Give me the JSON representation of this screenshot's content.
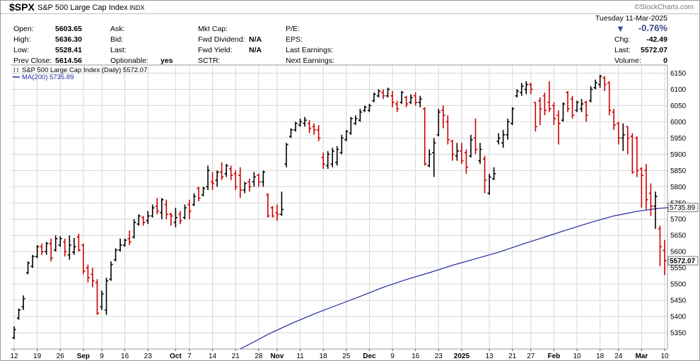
{
  "header": {
    "symbol": "$SPX",
    "name": "S&P 500 Large Cap Index",
    "exchange": "INDX",
    "logo": "©StockCharts.com",
    "date": "Tuesday  11-Mar-2025",
    "change_pct": "-0.76%",
    "change_arrow": "▼",
    "chg_label": "Chg:",
    "chg_value": "-42.49",
    "last_label": "Last:",
    "last_value": "5572.07",
    "volume_label": "Volume:",
    "volume_value": "0"
  },
  "stats": {
    "open_label": "Open:",
    "open": "5603.65",
    "high_label": "High:",
    "high": "5636.30",
    "low_label": "Low:",
    "low": "5528.41",
    "prev_label": "Prev Close:",
    "prev": "5614.56",
    "ask_label": "Ask:",
    "bid_label": "Bid:",
    "lastq_label": "Last:",
    "optionable_label": "Optionable:",
    "optionable": "yes",
    "mktcap_label": "Mkt Cap:",
    "fwddiv_label": "Fwd Dividend:",
    "fwddiv": "N/A",
    "fwdyield_label": "Fwd Yield:",
    "fwdyield": "N/A",
    "sctr_label": "SCTR:",
    "pe_label": "P/E:",
    "eps_label": "EPS:",
    "lastearn_label": "Last Earnings:",
    "nextearn_label": "Next Earnings:"
  },
  "chart_data": {
    "type": "line",
    "legend": {
      "price": "S&P 500 Large Cap Index (Daily) 5572.07",
      "ma": "MA(200) 5735.89",
      "placement": "top-left"
    },
    "price_style": "ohlc-bars",
    "colors": {
      "up": "#000000",
      "down": "#cc0000",
      "ma": "#1f2a9e",
      "grid": "#d6d6d6"
    },
    "ylim": [
      5300,
      6175
    ],
    "y_ticks": [
      5350,
      5400,
      5450,
      5500,
      5550,
      5600,
      5650,
      5700,
      5750,
      5800,
      5850,
      5900,
      5950,
      6000,
      6050,
      6100,
      6150
    ],
    "x_ticks": [
      {
        "label": "12",
        "bar": 0,
        "bold": false
      },
      {
        "label": "19",
        "bar": 5,
        "bold": false
      },
      {
        "label": "26",
        "bar": 10,
        "bold": false
      },
      {
        "label": "Sep",
        "bar": 15,
        "bold": true
      },
      {
        "label": "9",
        "bar": 19,
        "bold": false
      },
      {
        "label": "16",
        "bar": 24,
        "bold": false
      },
      {
        "label": "23",
        "bar": 29,
        "bold": false
      },
      {
        "label": "Oct",
        "bar": 35,
        "bold": true
      },
      {
        "label": "7",
        "bar": 38,
        "bold": false
      },
      {
        "label": "14",
        "bar": 43,
        "bold": false
      },
      {
        "label": "21",
        "bar": 48,
        "bold": false
      },
      {
        "label": "28",
        "bar": 53,
        "bold": false
      },
      {
        "label": "Nov",
        "bar": 57,
        "bold": true
      },
      {
        "label": "11",
        "bar": 62,
        "bold": false
      },
      {
        "label": "18",
        "bar": 67,
        "bold": false
      },
      {
        "label": "25",
        "bar": 72,
        "bold": false
      },
      {
        "label": "Dec",
        "bar": 77,
        "bold": true
      },
      {
        "label": "9",
        "bar": 82,
        "bold": false
      },
      {
        "label": "16",
        "bar": 87,
        "bold": false
      },
      {
        "label": "23",
        "bar": 92,
        "bold": false
      },
      {
        "label": "2025",
        "bar": 97,
        "bold": true
      },
      {
        "label": "13",
        "bar": 103,
        "bold": false
      },
      {
        "label": "21",
        "bar": 108,
        "bold": false
      },
      {
        "label": "27",
        "bar": 112,
        "bold": false
      },
      {
        "label": "Feb",
        "bar": 117,
        "bold": true
      },
      {
        "label": "10",
        "bar": 122,
        "bold": false
      },
      {
        "label": "18",
        "bar": 127,
        "bold": false
      },
      {
        "label": "24",
        "bar": 131,
        "bold": false
      },
      {
        "label": "Mar",
        "bar": 136,
        "bold": true
      },
      {
        "label": "10",
        "bar": 141,
        "bold": false
      }
    ],
    "last_price": 5572.07,
    "ma_last": 5735.89,
    "ma_points": [
      [
        49,
        5300
      ],
      [
        52,
        5322
      ],
      [
        55,
        5345
      ],
      [
        60,
        5378
      ],
      [
        65,
        5408
      ],
      [
        70,
        5435
      ],
      [
        75,
        5462
      ],
      [
        80,
        5490
      ],
      [
        85,
        5514
      ],
      [
        90,
        5535
      ],
      [
        95,
        5558
      ],
      [
        100,
        5578
      ],
      [
        105,
        5598
      ],
      [
        110,
        5622
      ],
      [
        115,
        5645
      ],
      [
        120,
        5668
      ],
      [
        125,
        5690
      ],
      [
        130,
        5710
      ],
      [
        135,
        5724
      ],
      [
        139,
        5732
      ],
      [
        142,
        5736
      ]
    ],
    "bars": [
      {
        "h": 5370,
        "l": 5330,
        "o": 5335,
        "c": 5360
      },
      {
        "h": 5425,
        "l": 5390,
        "o": 5395,
        "c": 5420
      },
      {
        "h": 5465,
        "l": 5420,
        "o": 5430,
        "c": 5455
      },
      {
        "h": 5570,
        "l": 5530,
        "o": 5535,
        "c": 5565
      },
      {
        "h": 5590,
        "l": 5550,
        "o": 5555,
        "c": 5585
      },
      {
        "h": 5620,
        "l": 5580,
        "o": 5585,
        "c": 5615
      },
      {
        "h": 5625,
        "l": 5590,
        "o": 5615,
        "c": 5600
      },
      {
        "h": 5630,
        "l": 5590,
        "o": 5600,
        "c": 5625
      },
      {
        "h": 5640,
        "l": 5570,
        "o": 5625,
        "c": 5580
      },
      {
        "h": 5650,
        "l": 5600,
        "o": 5605,
        "c": 5640
      },
      {
        "h": 5648,
        "l": 5615,
        "o": 5620,
        "c": 5640
      },
      {
        "h": 5640,
        "l": 5585,
        "o": 5630,
        "c": 5600
      },
      {
        "h": 5650,
        "l": 5575,
        "o": 5590,
        "c": 5620
      },
      {
        "h": 5642,
        "l": 5590,
        "o": 5598,
        "c": 5615
      },
      {
        "h": 5655,
        "l": 5600,
        "o": 5645,
        "c": 5605
      },
      {
        "h": 5625,
        "l": 5530,
        "o": 5620,
        "c": 5540
      },
      {
        "h": 5560,
        "l": 5505,
        "o": 5550,
        "c": 5520
      },
      {
        "h": 5550,
        "l": 5490,
        "o": 5530,
        "c": 5510
      },
      {
        "h": 5515,
        "l": 5405,
        "o": 5505,
        "c": 5410
      },
      {
        "h": 5480,
        "l": 5420,
        "o": 5430,
        "c": 5470
      },
      {
        "h": 5520,
        "l": 5405,
        "o": 5420,
        "c": 5510
      },
      {
        "h": 5570,
        "l": 5510,
        "o": 5515,
        "c": 5560
      },
      {
        "h": 5610,
        "l": 5570,
        "o": 5575,
        "c": 5605
      },
      {
        "h": 5640,
        "l": 5600,
        "o": 5605,
        "c": 5620
      },
      {
        "h": 5640,
        "l": 5615,
        "o": 5620,
        "c": 5635
      },
      {
        "h": 5665,
        "l": 5620,
        "o": 5640,
        "c": 5630
      },
      {
        "h": 5700,
        "l": 5640,
        "o": 5645,
        "c": 5690
      },
      {
        "h": 5715,
        "l": 5680,
        "o": 5685,
        "c": 5710
      },
      {
        "h": 5710,
        "l": 5680,
        "o": 5705,
        "c": 5690
      },
      {
        "h": 5725,
        "l": 5685,
        "o": 5695,
        "c": 5710
      },
      {
        "h": 5745,
        "l": 5705,
        "o": 5710,
        "c": 5735
      },
      {
        "h": 5765,
        "l": 5715,
        "o": 5740,
        "c": 5725
      },
      {
        "h": 5765,
        "l": 5700,
        "o": 5720,
        "c": 5760
      },
      {
        "h": 5760,
        "l": 5700,
        "o": 5745,
        "c": 5715
      },
      {
        "h": 5720,
        "l": 5680,
        "o": 5715,
        "c": 5710
      },
      {
        "h": 5735,
        "l": 5675,
        "o": 5690,
        "c": 5705
      },
      {
        "h": 5725,
        "l": 5685,
        "o": 5715,
        "c": 5695
      },
      {
        "h": 5745,
        "l": 5700,
        "o": 5705,
        "c": 5735
      },
      {
        "h": 5760,
        "l": 5700,
        "o": 5745,
        "c": 5725
      },
      {
        "h": 5780,
        "l": 5740,
        "o": 5745,
        "c": 5770
      },
      {
        "h": 5800,
        "l": 5755,
        "o": 5795,
        "c": 5765
      },
      {
        "h": 5800,
        "l": 5770,
        "o": 5775,
        "c": 5795
      },
      {
        "h": 5865,
        "l": 5790,
        "o": 5800,
        "c": 5850
      },
      {
        "h": 5845,
        "l": 5790,
        "o": 5815,
        "c": 5810
      },
      {
        "h": 5850,
        "l": 5800,
        "o": 5820,
        "c": 5845
      },
      {
        "h": 5875,
        "l": 5820,
        "o": 5845,
        "c": 5830
      },
      {
        "h": 5870,
        "l": 5830,
        "o": 5840,
        "c": 5865
      },
      {
        "h": 5865,
        "l": 5820,
        "o": 5855,
        "c": 5835
      },
      {
        "h": 5850,
        "l": 5790,
        "o": 5840,
        "c": 5800
      },
      {
        "h": 5860,
        "l": 5765,
        "o": 5835,
        "c": 5790
      },
      {
        "h": 5815,
        "l": 5780,
        "o": 5790,
        "c": 5810
      },
      {
        "h": 5825,
        "l": 5785,
        "o": 5815,
        "c": 5800
      },
      {
        "h": 5845,
        "l": 5800,
        "o": 5815,
        "c": 5830
      },
      {
        "h": 5840,
        "l": 5800,
        "o": 5835,
        "c": 5815
      },
      {
        "h": 5850,
        "l": 5800,
        "o": 5815,
        "c": 5845
      },
      {
        "h": 5780,
        "l": 5705,
        "o": 5775,
        "c": 5710
      },
      {
        "h": 5740,
        "l": 5705,
        "o": 5735,
        "c": 5710
      },
      {
        "h": 5745,
        "l": 5695,
        "o": 5720,
        "c": 5715
      },
      {
        "h": 5785,
        "l": 5710,
        "o": 5715,
        "c": 5730
      },
      {
        "h": 5935,
        "l": 5860,
        "o": 5870,
        "c": 5930
      },
      {
        "h": 5980,
        "l": 5950,
        "o": 5955,
        "c": 5975
      },
      {
        "h": 6000,
        "l": 5970,
        "o": 5975,
        "c": 5995
      },
      {
        "h": 6010,
        "l": 5985,
        "o": 5990,
        "c": 6000
      },
      {
        "h": 6015,
        "l": 5985,
        "o": 5995,
        "c": 6005
      },
      {
        "h": 6005,
        "l": 5965,
        "o": 5995,
        "c": 5980
      },
      {
        "h": 5995,
        "l": 5960,
        "o": 5985,
        "c": 5975
      },
      {
        "h": 5990,
        "l": 5940,
        "o": 5975,
        "c": 5950
      },
      {
        "h": 5905,
        "l": 5855,
        "o": 5890,
        "c": 5870
      },
      {
        "h": 5910,
        "l": 5855,
        "o": 5865,
        "c": 5900
      },
      {
        "h": 5920,
        "l": 5860,
        "o": 5870,
        "c": 5910
      },
      {
        "h": 5925,
        "l": 5865,
        "o": 5875,
        "c": 5915
      },
      {
        "h": 5960,
        "l": 5900,
        "o": 5905,
        "c": 5950
      },
      {
        "h": 5975,
        "l": 5940,
        "o": 5945,
        "c": 5970
      },
      {
        "h": 6015,
        "l": 5960,
        "o": 5965,
        "c": 6010
      },
      {
        "h": 6020,
        "l": 5990,
        "o": 5995,
        "c": 6010
      },
      {
        "h": 6040,
        "l": 6000,
        "o": 6005,
        "c": 6030
      },
      {
        "h": 6050,
        "l": 6030,
        "o": 6035,
        "c": 6045
      },
      {
        "h": 6055,
        "l": 6030,
        "o": 6035,
        "c": 6050
      },
      {
        "h": 6090,
        "l": 6060,
        "o": 6065,
        "c": 6085
      },
      {
        "h": 6100,
        "l": 6075,
        "o": 6080,
        "c": 6095
      },
      {
        "h": 6100,
        "l": 6070,
        "o": 6090,
        "c": 6080
      },
      {
        "h": 6105,
        "l": 6075,
        "o": 6080,
        "c": 6100
      },
      {
        "h": 6095,
        "l": 6045,
        "o": 6080,
        "c": 6060
      },
      {
        "h": 6065,
        "l": 6030,
        "o": 6055,
        "c": 6040
      },
      {
        "h": 6095,
        "l": 6055,
        "o": 6060,
        "c": 6090
      },
      {
        "h": 6080,
        "l": 6045,
        "o": 6075,
        "c": 6055
      },
      {
        "h": 6085,
        "l": 6055,
        "o": 6060,
        "c": 6075
      },
      {
        "h": 6090,
        "l": 6050,
        "o": 6080,
        "c": 6060
      },
      {
        "h": 6080,
        "l": 6045,
        "o": 6060,
        "c": 6070
      },
      {
        "h": 6045,
        "l": 5865,
        "o": 6040,
        "c": 5870
      },
      {
        "h": 5915,
        "l": 5860,
        "o": 5865,
        "c": 5900
      },
      {
        "h": 5950,
        "l": 5830,
        "o": 5905,
        "c": 5935
      },
      {
        "h": 6040,
        "l": 5955,
        "o": 5960,
        "c": 6030
      },
      {
        "h": 6050,
        "l": 5980,
        "o": 6035,
        "c": 6020
      },
      {
        "h": 6020,
        "l": 5930,
        "o": 6000,
        "c": 5945
      },
      {
        "h": 5945,
        "l": 5880,
        "o": 5940,
        "c": 5900
      },
      {
        "h": 5935,
        "l": 5880,
        "o": 5895,
        "c": 5910
      },
      {
        "h": 5935,
        "l": 5870,
        "o": 5910,
        "c": 5880
      },
      {
        "h": 5915,
        "l": 5840,
        "o": 5905,
        "c": 5860
      },
      {
        "h": 5960,
        "l": 5890,
        "o": 5895,
        "c": 5945
      },
      {
        "h": 6010,
        "l": 5900,
        "o": 5950,
        "c": 5915
      },
      {
        "h": 5935,
        "l": 5870,
        "o": 5880,
        "c": 5915
      },
      {
        "h": 5895,
        "l": 5780,
        "o": 5885,
        "c": 5820
      },
      {
        "h": 5840,
        "l": 5775,
        "o": 5780,
        "c": 5830
      },
      {
        "h": 5860,
        "l": 5820,
        "o": 5825,
        "c": 5840
      },
      {
        "h": 5965,
        "l": 5930,
        "o": 5940,
        "c": 5950
      },
      {
        "h": 5975,
        "l": 5920,
        "o": 5935,
        "c": 5960
      },
      {
        "h": 6010,
        "l": 5945,
        "o": 5960,
        "c": 6000
      },
      {
        "h": 6045,
        "l": 5990,
        "o": 5995,
        "c": 6040
      },
      {
        "h": 6100,
        "l": 6075,
        "o": 6080,
        "c": 6095
      },
      {
        "h": 6120,
        "l": 6080,
        "o": 6090,
        "c": 6110
      },
      {
        "h": 6125,
        "l": 6085,
        "o": 6100,
        "c": 6115
      },
      {
        "h": 6120,
        "l": 6085,
        "o": 6115,
        "c": 6100
      },
      {
        "h": 6060,
        "l": 5970,
        "o": 6060,
        "c": 5985
      },
      {
        "h": 6075,
        "l": 5990,
        "o": 6065,
        "c": 6040
      },
      {
        "h": 6090,
        "l": 6020,
        "o": 6080,
        "c": 6035
      },
      {
        "h": 6125,
        "l": 6030,
        "o": 6060,
        "c": 6040
      },
      {
        "h": 6060,
        "l": 5990,
        "o": 6050,
        "c": 6010
      },
      {
        "h": 6035,
        "l": 5930,
        "o": 6020,
        "c": 5995
      },
      {
        "h": 6060,
        "l": 6000,
        "o": 6005,
        "c": 6055
      },
      {
        "h": 6095,
        "l": 6030,
        "o": 6090,
        "c": 6040
      },
      {
        "h": 6080,
        "l": 6010,
        "o": 6070,
        "c": 6020
      },
      {
        "h": 6065,
        "l": 6030,
        "o": 6035,
        "c": 6060
      },
      {
        "h": 6070,
        "l": 6030,
        "o": 6040,
        "c": 6055
      },
      {
        "h": 6065,
        "l": 6000,
        "o": 6060,
        "c": 6020
      },
      {
        "h": 6110,
        "l": 6060,
        "o": 6065,
        "c": 6100
      },
      {
        "h": 6130,
        "l": 6100,
        "o": 6105,
        "c": 6120
      },
      {
        "h": 6145,
        "l": 6105,
        "o": 6115,
        "c": 6140
      },
      {
        "h": 6140,
        "l": 6095,
        "o": 6135,
        "c": 6115
      },
      {
        "h": 6125,
        "l": 6020,
        "o": 6120,
        "c": 6035
      },
      {
        "h": 6040,
        "l": 5975,
        "o": 6030,
        "c": 5990
      },
      {
        "h": 6000,
        "l": 5930,
        "o": 5995,
        "c": 5950
      },
      {
        "h": 5995,
        "l": 5910,
        "o": 5950,
        "c": 5960
      },
      {
        "h": 5985,
        "l": 5900,
        "o": 5985,
        "c": 5950
      },
      {
        "h": 5965,
        "l": 5840,
        "o": 5955,
        "c": 5845
      },
      {
        "h": 5955,
        "l": 5830,
        "o": 5950,
        "c": 5850
      },
      {
        "h": 5860,
        "l": 5735,
        "o": 5855,
        "c": 5835
      },
      {
        "h": 5870,
        "l": 5730,
        "o": 5850,
        "c": 5760
      },
      {
        "h": 5810,
        "l": 5710,
        "o": 5780,
        "c": 5740
      },
      {
        "h": 5785,
        "l": 5670,
        "o": 5740,
        "c": 5770
      },
      {
        "h": 5680,
        "l": 5555,
        "o": 5670,
        "c": 5615
      },
      {
        "h": 5636,
        "l": 5528,
        "o": 5604,
        "c": 5572
      }
    ]
  }
}
